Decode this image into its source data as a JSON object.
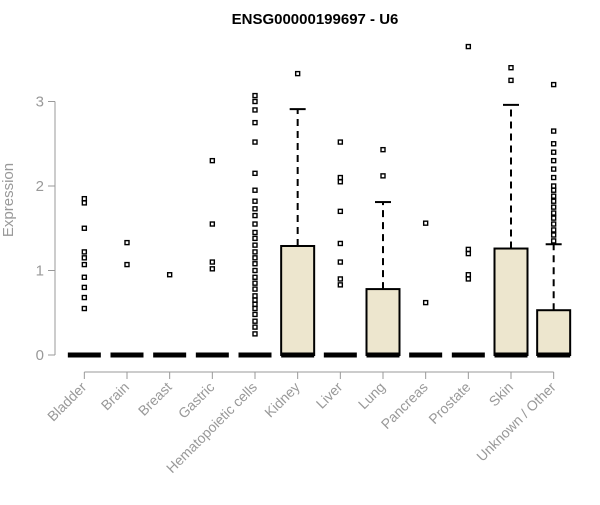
{
  "chart_data": {
    "type": "box",
    "title": "ENSG00000199697 - U6",
    "xlabel": "",
    "ylabel": "Expression",
    "ylim": [
      0,
      3.65
    ],
    "yticks": [
      0,
      1,
      2,
      3
    ],
    "grid": false,
    "legend": "none",
    "box_fill": "#ede6ce",
    "box_stroke": "#000000",
    "text_color": "#999999",
    "categories": [
      "Bladder",
      "Brain",
      "Breast",
      "Gastric",
      "Hematopoietic cells",
      "Kidney",
      "Liver",
      "Lung",
      "Pancreas",
      "Prostate",
      "Skin",
      "Unknown / Other"
    ],
    "boxes": [
      {
        "category": "Bladder",
        "q1": 0,
        "median": 0,
        "q3": 0,
        "whisker_low": 0,
        "whisker_high": 0,
        "outliers": [
          0.55,
          0.68,
          0.8,
          0.92,
          1.07,
          1.15,
          1.22,
          1.5,
          1.8,
          1.85
        ]
      },
      {
        "category": "Brain",
        "q1": 0,
        "median": 0,
        "q3": 0,
        "whisker_low": 0,
        "whisker_high": 0,
        "outliers": [
          1.07,
          1.33
        ]
      },
      {
        "category": "Breast",
        "q1": 0,
        "median": 0,
        "q3": 0,
        "whisker_low": 0,
        "whisker_high": 0,
        "outliers": [
          0.95
        ]
      },
      {
        "category": "Gastric",
        "q1": 0,
        "median": 0,
        "q3": 0,
        "whisker_low": 0,
        "whisker_high": 0,
        "outliers": [
          1.02,
          1.1,
          1.55,
          2.3
        ]
      },
      {
        "category": "Hematopoietic cells",
        "q1": 0,
        "median": 0,
        "q3": 0,
        "whisker_low": 0,
        "whisker_high": 0,
        "outliers": [
          0.25,
          0.33,
          0.4,
          0.48,
          0.55,
          0.6,
          0.65,
          0.7,
          0.78,
          0.85,
          0.92,
          1.0,
          1.08,
          1.15,
          1.22,
          1.3,
          1.38,
          1.45,
          1.55,
          1.65,
          1.73,
          1.82,
          1.95,
          2.15,
          2.52,
          2.75,
          2.9,
          3.0,
          3.07
        ]
      },
      {
        "category": "Kidney",
        "q1": 0,
        "median": 0,
        "q3": 1.29,
        "whisker_low": 0,
        "whisker_high": 2.91,
        "outliers": [
          3.33
        ]
      },
      {
        "category": "Liver",
        "q1": 0,
        "median": 0,
        "q3": 0,
        "whisker_low": 0,
        "whisker_high": 0,
        "outliers": [
          0.83,
          0.9,
          1.1,
          1.32,
          1.7,
          2.05,
          2.1,
          2.52
        ]
      },
      {
        "category": "Lung",
        "q1": 0,
        "median": 0,
        "q3": 0.78,
        "whisker_low": 0,
        "whisker_high": 1.81,
        "outliers": [
          2.12,
          2.43
        ]
      },
      {
        "category": "Pancreas",
        "q1": 0,
        "median": 0,
        "q3": 0,
        "whisker_low": 0,
        "whisker_high": 0,
        "outliers": [
          0.62,
          1.56
        ]
      },
      {
        "category": "Prostate",
        "q1": 0,
        "median": 0,
        "q3": 0,
        "whisker_low": 0,
        "whisker_high": 0,
        "outliers": [
          0.9,
          0.95,
          1.2,
          1.25,
          3.65
        ]
      },
      {
        "category": "Skin",
        "q1": 0,
        "median": 0,
        "q3": 1.26,
        "whisker_low": 0,
        "whisker_high": 2.96,
        "outliers": [
          3.25,
          3.4
        ]
      },
      {
        "category": "Unknown / Other",
        "q1": 0,
        "median": 0,
        "q3": 0.53,
        "whisker_low": 0,
        "whisker_high": 1.31,
        "outliers": [
          1.35,
          1.42,
          1.48,
          1.55,
          1.62,
          1.68,
          1.75,
          1.82,
          1.88,
          1.95,
          2.0,
          2.1,
          2.2,
          2.3,
          2.4,
          2.5,
          2.65,
          3.2
        ]
      }
    ]
  }
}
